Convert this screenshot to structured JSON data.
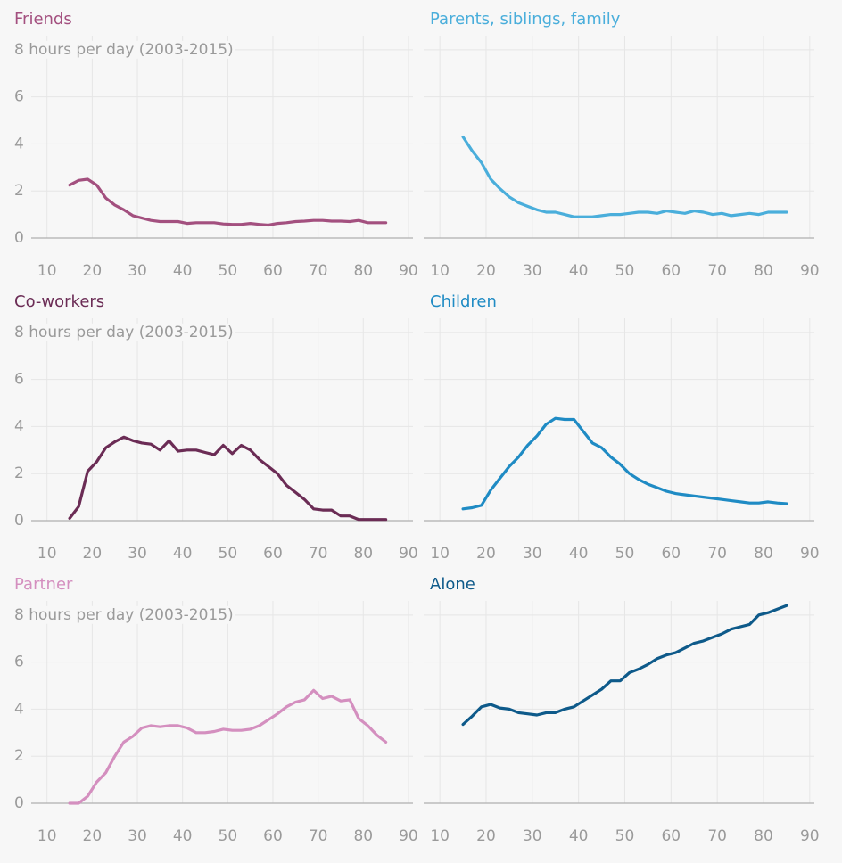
{
  "chart_data": [
    {
      "type": "line",
      "title": "Friends",
      "color": "#a3507f",
      "x": [
        15,
        17,
        19,
        21,
        23,
        25,
        27,
        29,
        31,
        33,
        35,
        37,
        39,
        41,
        43,
        45,
        47,
        49,
        51,
        53,
        55,
        57,
        59,
        61,
        63,
        65,
        67,
        69,
        71,
        73,
        75,
        77,
        79,
        81,
        83,
        85
      ],
      "values": [
        2.25,
        2.45,
        2.5,
        2.25,
        1.7,
        1.4,
        1.2,
        0.95,
        0.85,
        0.75,
        0.7,
        0.7,
        0.7,
        0.62,
        0.65,
        0.65,
        0.65,
        0.6,
        0.58,
        0.58,
        0.62,
        0.58,
        0.55,
        0.62,
        0.65,
        0.7,
        0.72,
        0.75,
        0.75,
        0.72,
        0.72,
        0.7,
        0.75,
        0.65,
        0.65,
        0.65
      ],
      "xlim": [
        6.5,
        91
      ],
      "ylim": [
        0,
        8.6
      ],
      "xticks": [
        10,
        20,
        30,
        40,
        50,
        60,
        70,
        80,
        90
      ],
      "yticks": [
        0,
        2,
        4,
        6,
        {
          "value": 8,
          "label": "8 hours per day (2003-2015)"
        }
      ],
      "grid": true,
      "show_ytick_labels": true
    },
    {
      "type": "line",
      "title": "Parents, siblings, family",
      "color": "#4aaedb",
      "x": [
        15,
        17,
        19,
        21,
        23,
        25,
        27,
        29,
        31,
        33,
        35,
        37,
        39,
        41,
        43,
        45,
        47,
        49,
        51,
        53,
        55,
        57,
        59,
        61,
        63,
        65,
        67,
        69,
        71,
        73,
        75,
        77,
        79,
        81,
        83,
        85
      ],
      "values": [
        4.3,
        3.7,
        3.2,
        2.5,
        2.1,
        1.75,
        1.5,
        1.35,
        1.2,
        1.1,
        1.1,
        1.0,
        0.9,
        0.9,
        0.9,
        0.95,
        1.0,
        1.0,
        1.05,
        1.1,
        1.1,
        1.05,
        1.15,
        1.1,
        1.05,
        1.15,
        1.1,
        1.0,
        1.05,
        0.95,
        1.0,
        1.05,
        1.0,
        1.1,
        1.1,
        1.1
      ],
      "xlim": [
        6.5,
        91
      ],
      "ylim": [
        0,
        8.6
      ],
      "xticks": [
        10,
        20,
        30,
        40,
        50,
        60,
        70,
        80,
        90
      ],
      "yticks": [
        0,
        2,
        4,
        6,
        8
      ],
      "grid": true,
      "show_ytick_labels": false
    },
    {
      "type": "line",
      "title": "Co-workers",
      "color": "#6b2c55",
      "x": [
        15,
        17,
        19,
        21,
        23,
        25,
        27,
        29,
        31,
        33,
        35,
        37,
        39,
        41,
        43,
        45,
        47,
        49,
        51,
        53,
        55,
        57,
        59,
        61,
        63,
        65,
        67,
        69,
        71,
        73,
        75,
        77,
        79,
        81,
        83,
        85
      ],
      "values": [
        0.1,
        0.6,
        2.1,
        2.5,
        3.1,
        3.35,
        3.55,
        3.4,
        3.3,
        3.25,
        3.0,
        3.4,
        2.95,
        3.0,
        3.0,
        2.9,
        2.8,
        3.2,
        2.85,
        3.2,
        3.0,
        2.6,
        2.3,
        2.0,
        1.5,
        1.2,
        0.9,
        0.5,
        0.45,
        0.45,
        0.2,
        0.2,
        0.05,
        0.05,
        0.05,
        0.05
      ],
      "xlim": [
        6.5,
        91
      ],
      "ylim": [
        0,
        8.6
      ],
      "xticks": [
        10,
        20,
        30,
        40,
        50,
        60,
        70,
        80,
        90
      ],
      "yticks": [
        0,
        2,
        4,
        6,
        {
          "value": 8,
          "label": "8 hours per day (2003-2015)"
        }
      ],
      "grid": true,
      "show_ytick_labels": true
    },
    {
      "type": "line",
      "title": "Children",
      "color": "#1f8bc4",
      "x": [
        15,
        17,
        19,
        21,
        23,
        25,
        27,
        29,
        31,
        33,
        35,
        37,
        39,
        41,
        43,
        45,
        47,
        49,
        51,
        53,
        55,
        57,
        59,
        61,
        63,
        65,
        67,
        69,
        71,
        73,
        75,
        77,
        79,
        81,
        83,
        85
      ],
      "values": [
        0.5,
        0.55,
        0.65,
        1.3,
        1.8,
        2.3,
        2.7,
        3.2,
        3.6,
        4.1,
        4.35,
        4.3,
        4.3,
        3.8,
        3.3,
        3.1,
        2.7,
        2.4,
        2.0,
        1.75,
        1.55,
        1.4,
        1.25,
        1.15,
        1.1,
        1.05,
        1.0,
        0.95,
        0.9,
        0.85,
        0.8,
        0.75,
        0.75,
        0.8,
        0.75,
        0.72
      ],
      "xlim": [
        6.5,
        91
      ],
      "ylim": [
        0,
        8.6
      ],
      "xticks": [
        10,
        20,
        30,
        40,
        50,
        60,
        70,
        80,
        90
      ],
      "yticks": [
        0,
        2,
        4,
        6,
        8
      ],
      "grid": true,
      "show_ytick_labels": false
    },
    {
      "type": "line",
      "title": "Partner",
      "color": "#d48fbf",
      "x": [
        15,
        17,
        19,
        21,
        23,
        25,
        27,
        29,
        31,
        33,
        35,
        37,
        39,
        41,
        43,
        45,
        47,
        49,
        51,
        53,
        55,
        57,
        59,
        61,
        63,
        65,
        67,
        69,
        71,
        73,
        75,
        77,
        79,
        81,
        83,
        85
      ],
      "values": [
        0,
        0,
        0.3,
        0.9,
        1.3,
        2.0,
        2.6,
        2.85,
        3.2,
        3.3,
        3.25,
        3.3,
        3.3,
        3.2,
        3.0,
        3.0,
        3.05,
        3.15,
        3.1,
        3.1,
        3.15,
        3.3,
        3.55,
        3.8,
        4.1,
        4.3,
        4.4,
        4.8,
        4.45,
        4.55,
        4.35,
        4.4,
        3.6,
        3.3,
        2.9,
        2.6
      ],
      "xlim": [
        6.5,
        91
      ],
      "ylim": [
        0,
        8.6
      ],
      "xticks": [
        10,
        20,
        30,
        40,
        50,
        60,
        70,
        80,
        90
      ],
      "yticks": [
        0,
        2,
        4,
        6,
        {
          "value": 8,
          "label": "8 hours per day (2003-2015)"
        }
      ],
      "grid": true,
      "show_ytick_labels": true
    },
    {
      "type": "line",
      "title": "Alone",
      "color": "#0e5a8a",
      "x": [
        15,
        17,
        19,
        21,
        23,
        25,
        27,
        29,
        31,
        33,
        35,
        37,
        39,
        41,
        43,
        45,
        47,
        49,
        51,
        53,
        55,
        57,
        59,
        61,
        63,
        65,
        67,
        69,
        71,
        73,
        75,
        77,
        79,
        81,
        83,
        85
      ],
      "values": [
        3.35,
        3.7,
        4.1,
        4.2,
        4.05,
        4.0,
        3.85,
        3.8,
        3.75,
        3.85,
        3.85,
        4.0,
        4.1,
        4.35,
        4.6,
        4.85,
        5.2,
        5.2,
        5.55,
        5.7,
        5.9,
        6.15,
        6.3,
        6.4,
        6.6,
        6.8,
        6.9,
        7.05,
        7.2,
        7.4,
        7.5,
        7.6,
        8.0,
        8.1,
        8.25,
        8.4
      ],
      "xlim": [
        6.5,
        91
      ],
      "ylim": [
        0,
        8.6
      ],
      "xticks": [
        10,
        20,
        30,
        40,
        50,
        60,
        70,
        80,
        90
      ],
      "yticks": [
        0,
        2,
        4,
        6,
        8
      ],
      "grid": true,
      "show_ytick_labels": false
    }
  ]
}
